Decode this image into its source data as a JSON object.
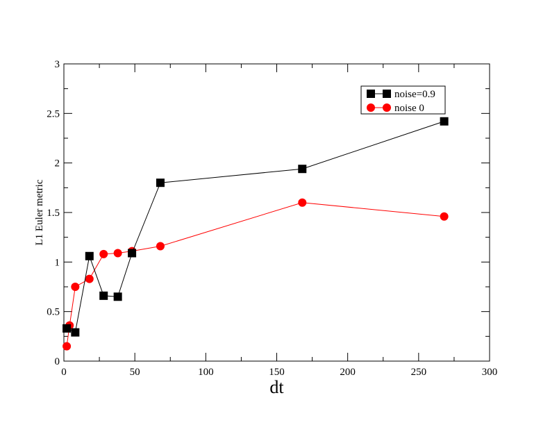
{
  "chart_data": {
    "type": "line",
    "title": "",
    "xlabel": "dt",
    "ylabel": "L1 Euler metric",
    "xlim": [
      0,
      300
    ],
    "ylim": [
      0,
      3
    ],
    "x_ticks": [
      0,
      50,
      100,
      150,
      200,
      250,
      300
    ],
    "x_tick_labels": [
      "0",
      "50",
      "100",
      "150",
      "200",
      "250",
      "300"
    ],
    "y_ticks": [
      0,
      0.5,
      1,
      1.5,
      2,
      2.5,
      3
    ],
    "y_tick_labels": [
      "0",
      "0.5",
      "1",
      "1.5",
      "2",
      "2.5",
      "3"
    ],
    "grid": false,
    "legend_position": "top-right",
    "series": [
      {
        "name": "noise=0.9",
        "color": "#000000",
        "marker": "square",
        "x": [
          2,
          8,
          18,
          28,
          38,
          48,
          68,
          168,
          268
        ],
        "y": [
          0.33,
          0.29,
          1.06,
          0.66,
          0.65,
          1.09,
          1.8,
          1.94,
          2.42
        ]
      },
      {
        "name": "noise 0",
        "color": "#ff0000",
        "marker": "circle",
        "x": [
          2,
          4,
          8,
          18,
          28,
          38,
          48,
          68,
          168,
          268
        ],
        "y": [
          0.15,
          0.36,
          0.75,
          0.83,
          1.08,
          1.09,
          1.11,
          1.16,
          1.6,
          1.46
        ]
      }
    ]
  }
}
